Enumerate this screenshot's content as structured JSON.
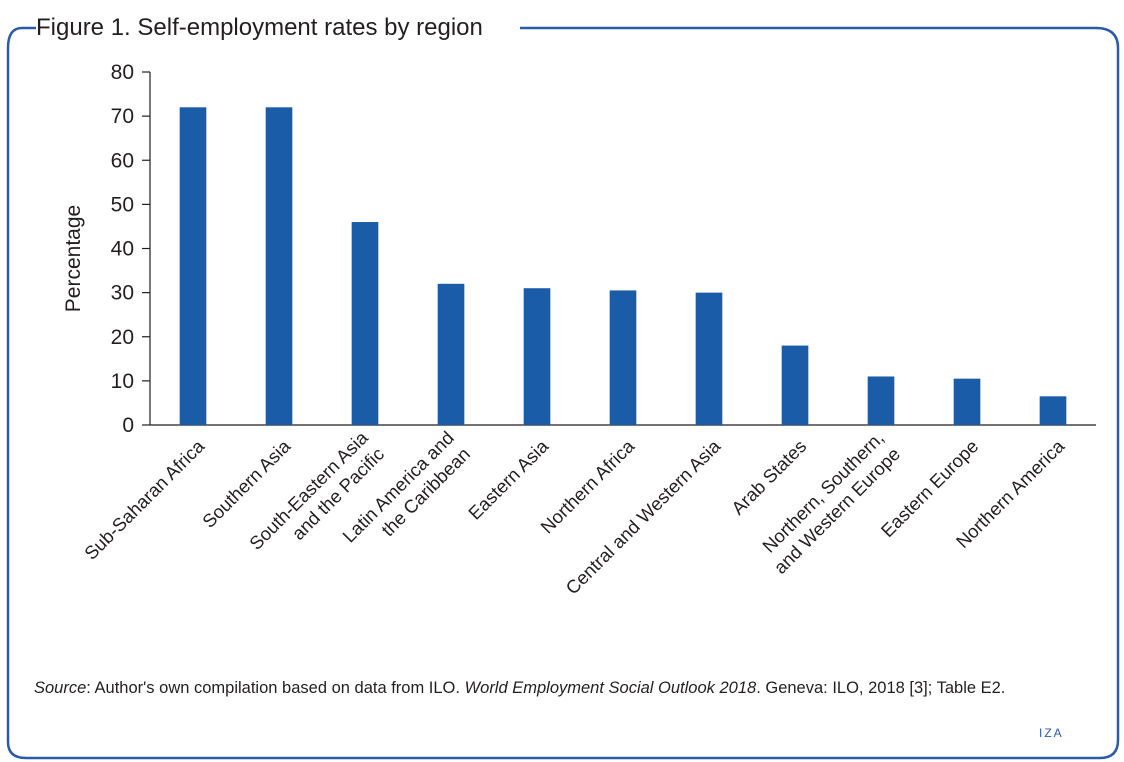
{
  "figure": {
    "title": "Figure 1. Self-employment rates by region",
    "source_label": "Source",
    "source_text_1": ": Author's own compilation based on data from ILO. ",
    "source_italic": "World Employment Social Outlook 2018",
    "source_text_2": ". Geneva: ILO, 2018 [3]; Table E2.",
    "logo": "IZA"
  },
  "chart_data": {
    "type": "bar",
    "ylabel": "Percentage",
    "xlabel": "",
    "ylim": [
      0,
      80
    ],
    "yticks": [
      0,
      10,
      20,
      30,
      40,
      50,
      60,
      70,
      80
    ],
    "grid": false,
    "bar_color": "#1a5ca8",
    "categories": [
      [
        "Sub-Saharan Africa"
      ],
      [
        "Southern Asia"
      ],
      [
        "South-Eastern Asia",
        "and the Pacific"
      ],
      [
        "Latin America and",
        "the Caribbean"
      ],
      [
        "Eastern Asia"
      ],
      [
        "Northern Africa"
      ],
      [
        "Central and Western Asia"
      ],
      [
        "Arab States"
      ],
      [
        "Northern, Southern,",
        "and Western Europe"
      ],
      [
        "Eastern Europe"
      ],
      [
        "Northern America"
      ]
    ],
    "values": [
      72,
      72,
      46,
      32,
      31,
      30.5,
      30,
      18,
      11,
      10.5,
      6.5
    ]
  }
}
